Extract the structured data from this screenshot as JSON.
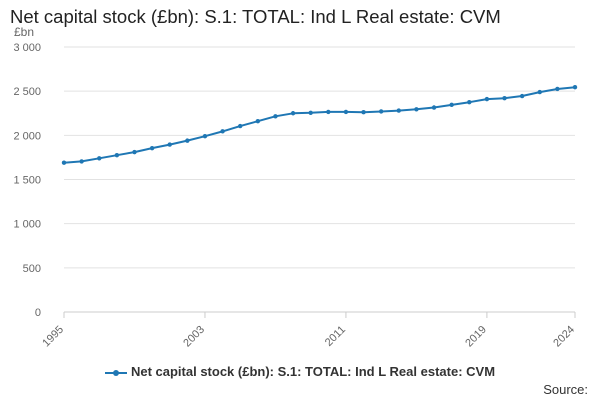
{
  "chart_data": {
    "type": "line",
    "title": "Net capital stock (£bn): S.1: TOTAL: Ind L Real estate: CVM",
    "ylabel": "£bn",
    "xlabel": "",
    "ylim": [
      0,
      3000
    ],
    "yticks": [
      0,
      500,
      1000,
      1500,
      2000,
      2500,
      3000
    ],
    "ytick_labels": [
      "0",
      "500",
      "1 000",
      "1 500",
      "2 000",
      "2 500",
      "3 000"
    ],
    "xlim": [
      1995,
      2024
    ],
    "xticks": [
      1995,
      2003,
      2011,
      2019,
      2024
    ],
    "xtick_labels": [
      "1995",
      "2003",
      "2011",
      "2019",
      "2024"
    ],
    "grid": "horizontal",
    "legend_position": "bottom",
    "x": [
      1995,
      1996,
      1997,
      1998,
      1999,
      2000,
      2001,
      2002,
      2003,
      2004,
      2005,
      2006,
      2007,
      2008,
      2009,
      2010,
      2011,
      2012,
      2013,
      2014,
      2015,
      2016,
      2017,
      2018,
      2019,
      2020,
      2021,
      2022,
      2023,
      2024
    ],
    "series": [
      {
        "name": "Net capital stock (£bn): S.1: TOTAL: Ind L Real estate: CVM",
        "color": "#1f77b4",
        "values": [
          1690,
          1705,
          1740,
          1775,
          1810,
          1855,
          1895,
          1940,
          1990,
          2045,
          2105,
          2160,
          2215,
          2250,
          2255,
          2265,
          2265,
          2262,
          2270,
          2280,
          2295,
          2315,
          2345,
          2375,
          2410,
          2420,
          2445,
          2490,
          2525,
          2545
        ]
      }
    ]
  },
  "source_label": "Source:"
}
